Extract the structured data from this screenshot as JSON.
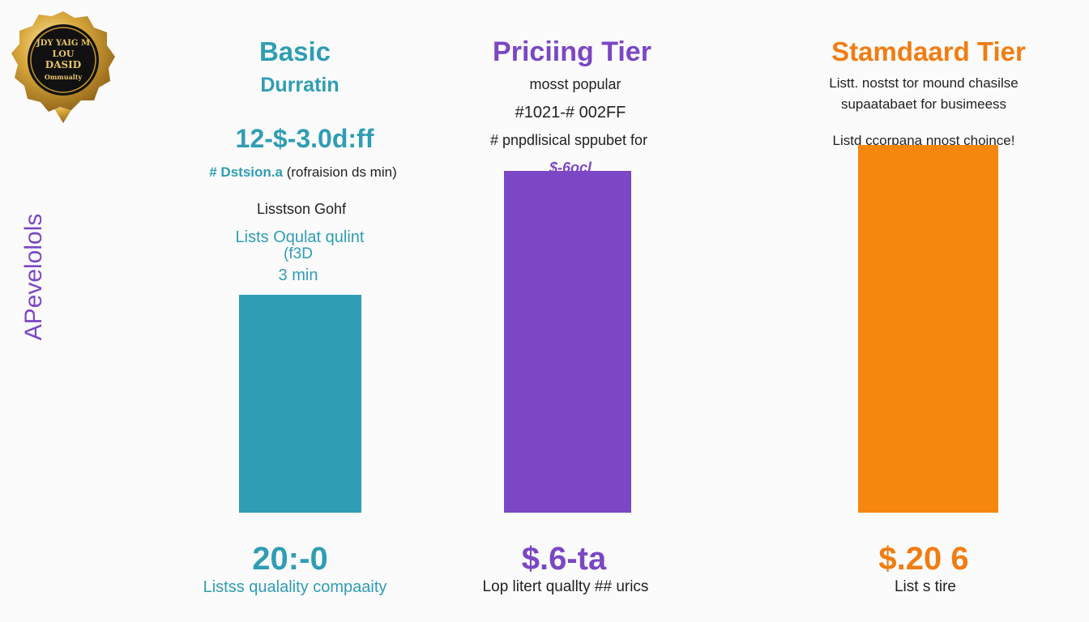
{
  "badge": {
    "line1": "JDY YAIG M",
    "line2": "LOU",
    "line3": "DASID",
    "line4": "Ommualty",
    "colors": {
      "gold": "#c9962e",
      "black": "#111111"
    }
  },
  "side_label": "APevelolols",
  "colors": {
    "teal": "#2f9db4",
    "purple": "#7b47c4",
    "orange": "#f5870f"
  },
  "chart_data": {
    "type": "bar",
    "categories": [
      "Basic",
      "Pricing Tier",
      "Stamdaard Tier"
    ],
    "values": [
      42,
      66,
      71
    ],
    "ylim": [
      0,
      100
    ],
    "grid": false,
    "legend": "none",
    "colors": [
      "#2f9db4",
      "#7b47c4",
      "#f5870f"
    ]
  },
  "columns": {
    "basic": {
      "title": "Basic",
      "subtitle": "Durratin",
      "price_range": "12-$-3.0d:ff",
      "hash_line": "# Dstsion.a",
      "hash_line_rest": "(rofraision ds min)",
      "list_line": "Lisstson Gohf",
      "quality_line": "Lists Oqulat qulint",
      "paren_line": "(f3D",
      "min_line": "3 min",
      "big_value": "20:-0",
      "footer": "Listss qualality compaaity"
    },
    "pricing": {
      "title": "Priciing Tier",
      "subtitle": "mosst popular",
      "code_line": "#1021-# 002FF",
      "hash_line": "# pnpdlisical sppubet for",
      "price_tag": "$-6ocl",
      "big_value": "$.6-ta",
      "footer": "Lop litert quallty ## urics"
    },
    "standard": {
      "title": "Stamdaard Tier",
      "desc_line1": "Listt. nostst tor mound chasilse",
      "desc_line2": "supaatabaet for busimeess",
      "list_line": "Listd ccorpana nnost choince!",
      "big_value": "$.20 6",
      "footer": "List s tire"
    }
  }
}
